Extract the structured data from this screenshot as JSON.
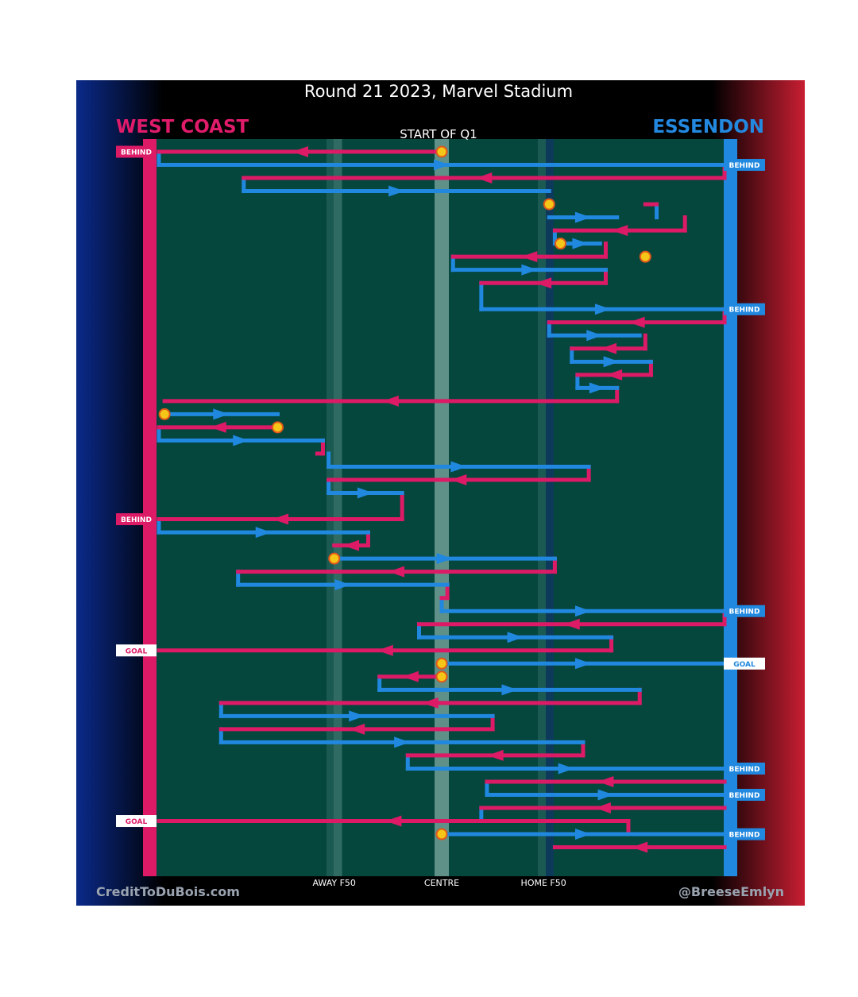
{
  "header": {
    "title": "Round 21 2023, Marvel Stadium",
    "subtitle": "START OF Q1"
  },
  "teams": {
    "away": {
      "name": "WEST COAST",
      "color": "#e01b6a"
    },
    "home": {
      "name": "ESSENDON",
      "color": "#2389e0"
    }
  },
  "credits": {
    "left": "CreditToDuBois.com",
    "right": "@BreeseEmlyn"
  },
  "colors": {
    "field": "#05463d",
    "away_line": "#dc1a66",
    "home_line": "#2088df",
    "marker": "#f5c518"
  },
  "chart_data": {
    "type": "line",
    "title": "Round 21 2023, Marvel Stadium",
    "subtitle": "START OF Q1",
    "description": "Ball movement chain chart; x = field position (0 = West Coast goal line, 100 = Essendon goal line), y = sequence of possession segments",
    "x_axis": {
      "range": [
        0,
        100
      ],
      "ticks": [
        {
          "label": "AWAY F50",
          "value": 31
        },
        {
          "label": "CENTRE",
          "value": 50
        },
        {
          "label": "HOME F50",
          "value": 68
        }
      ]
    },
    "outcomes": [
      {
        "team": "away",
        "label": "BEHIND",
        "row": 1
      },
      {
        "team": "home",
        "label": "BEHIND",
        "row": 2
      },
      {
        "team": "home",
        "label": "BEHIND",
        "row": 13
      },
      {
        "team": "away",
        "label": "BEHIND",
        "row": 29
      },
      {
        "team": "home",
        "label": "BEHIND",
        "row": 36
      },
      {
        "team": "away",
        "label": "GOAL",
        "row": 39
      },
      {
        "team": "home",
        "label": "GOAL",
        "row": 40
      },
      {
        "team": "home",
        "label": "BEHIND",
        "row": 48
      },
      {
        "team": "home",
        "label": "BEHIND",
        "row": 50
      },
      {
        "team": "away",
        "label": "GOAL",
        "row": 52
      },
      {
        "team": "home",
        "label": "BEHIND",
        "row": 53
      }
    ],
    "series": [
      {
        "name": "away",
        "segments": [
          {
            "row": 1,
            "from": 50,
            "to": 0
          },
          {
            "row": 3,
            "from": 100,
            "to": 15
          },
          {
            "row": 5,
            "from": 86,
            "to": 88
          },
          {
            "row": 7,
            "from": 93,
            "to": 70
          },
          {
            "row": 9,
            "from": 79,
            "to": 52
          },
          {
            "row": 11,
            "from": 79,
            "to": 57
          },
          {
            "row": 14,
            "from": 100,
            "to": 69
          },
          {
            "row": 16,
            "from": 86,
            "to": 73
          },
          {
            "row": 18,
            "from": 87,
            "to": 74
          },
          {
            "row": 20,
            "from": 81,
            "to": 1
          },
          {
            "row": 22,
            "from": 21,
            "to": 0
          },
          {
            "row": 24,
            "from": 29,
            "to": 28
          },
          {
            "row": 26,
            "from": 76,
            "to": 30
          },
          {
            "row": 29,
            "from": 43,
            "to": 0
          },
          {
            "row": 31,
            "from": 37,
            "to": 31
          },
          {
            "row": 33,
            "from": 70,
            "to": 14
          },
          {
            "row": 35,
            "from": 51,
            "to": 50
          },
          {
            "row": 37,
            "from": 100,
            "to": 46
          },
          {
            "row": 39,
            "from": 80,
            "to": 0
          },
          {
            "row": 41,
            "from": 50,
            "to": 39
          },
          {
            "row": 43,
            "from": 85,
            "to": 11
          },
          {
            "row": 45,
            "from": 59,
            "to": 11
          },
          {
            "row": 47,
            "from": 75,
            "to": 44
          },
          {
            "row": 49,
            "from": 100,
            "to": 58
          },
          {
            "row": 51,
            "from": 100,
            "to": 57
          },
          {
            "row": 52,
            "from": 83,
            "to": 0
          },
          {
            "row": 54,
            "from": 100,
            "to": 70
          }
        ]
      },
      {
        "name": "home",
        "segments": [
          {
            "row": 2,
            "from": 0,
            "to": 100
          },
          {
            "row": 4,
            "from": 15,
            "to": 69
          },
          {
            "row": 6,
            "from": 69,
            "to": 81
          },
          {
            "row": 8,
            "from": 71,
            "to": 78
          },
          {
            "row": 10,
            "from": 52,
            "to": 79
          },
          {
            "row": 13,
            "from": 57,
            "to": 100
          },
          {
            "row": 15,
            "from": 69,
            "to": 85
          },
          {
            "row": 17,
            "from": 73,
            "to": 87
          },
          {
            "row": 19,
            "from": 74,
            "to": 81
          },
          {
            "row": 21,
            "from": 1,
            "to": 21
          },
          {
            "row": 23,
            "from": 0,
            "to": 29
          },
          {
            "row": 25,
            "from": 30,
            "to": 76
          },
          {
            "row": 27,
            "from": 30,
            "to": 43
          },
          {
            "row": 30,
            "from": 0,
            "to": 37
          },
          {
            "row": 32,
            "from": 31,
            "to": 70
          },
          {
            "row": 34,
            "from": 14,
            "to": 51
          },
          {
            "row": 36,
            "from": 50,
            "to": 100
          },
          {
            "row": 38,
            "from": 46,
            "to": 80
          },
          {
            "row": 40,
            "from": 50,
            "to": 100
          },
          {
            "row": 42,
            "from": 39,
            "to": 85
          },
          {
            "row": 44,
            "from": 11,
            "to": 59
          },
          {
            "row": 46,
            "from": 11,
            "to": 75
          },
          {
            "row": 48,
            "from": 44,
            "to": 100
          },
          {
            "row": 50,
            "from": 58,
            "to": 100
          },
          {
            "row": 53,
            "from": 50,
            "to": 100
          }
        ]
      }
    ],
    "connectors": [
      {
        "rows": [
          1,
          2
        ],
        "x": 0,
        "color": "home"
      },
      {
        "rows": [
          2,
          3
        ],
        "x": 100,
        "color": "away"
      },
      {
        "rows": [
          3,
          4
        ],
        "x": 15,
        "color": "home"
      },
      {
        "rows": [
          5,
          6
        ],
        "x": 88,
        "color": "home"
      },
      {
        "rows": [
          6,
          7
        ],
        "x": 93,
        "color": "away"
      },
      {
        "rows": [
          7,
          8
        ],
        "x": 70,
        "color": "home"
      },
      {
        "rows": [
          8,
          9
        ],
        "x": 79,
        "color": "away"
      },
      {
        "rows": [
          9,
          10
        ],
        "x": 52,
        "color": "home"
      },
      {
        "rows": [
          10,
          11
        ],
        "x": 79,
        "color": "away"
      },
      {
        "rows": [
          11,
          13
        ],
        "x": 57,
        "color": "home"
      },
      {
        "rows": [
          13,
          14
        ],
        "x": 100,
        "color": "away"
      },
      {
        "rows": [
          14,
          15
        ],
        "x": 69,
        "color": "home"
      },
      {
        "rows": [
          15,
          16
        ],
        "x": 86,
        "color": "away"
      },
      {
        "rows": [
          16,
          17
        ],
        "x": 73,
        "color": "home"
      },
      {
        "rows": [
          17,
          18
        ],
        "x": 87,
        "color": "away"
      },
      {
        "rows": [
          18,
          19
        ],
        "x": 74,
        "color": "home"
      },
      {
        "rows": [
          19,
          20
        ],
        "x": 81,
        "color": "away"
      },
      {
        "rows": [
          22,
          23
        ],
        "x": 0,
        "color": "home"
      },
      {
        "rows": [
          23,
          24
        ],
        "x": 29,
        "color": "away"
      },
      {
        "rows": [
          24,
          25
        ],
        "x": 30,
        "color": "home"
      },
      {
        "rows": [
          25,
          26
        ],
        "x": 76,
        "color": "away"
      },
      {
        "rows": [
          26,
          27
        ],
        "x": 30,
        "color": "home"
      },
      {
        "rows": [
          27,
          29
        ],
        "x": 43,
        "color": "away"
      },
      {
        "rows": [
          29,
          30
        ],
        "x": 0,
        "color": "home"
      },
      {
        "rows": [
          30,
          31
        ],
        "x": 37,
        "color": "away"
      },
      {
        "rows": [
          32,
          33
        ],
        "x": 70,
        "color": "away"
      },
      {
        "rows": [
          33,
          34
        ],
        "x": 14,
        "color": "home"
      },
      {
        "rows": [
          34,
          35
        ],
        "x": 51,
        "color": "away"
      },
      {
        "rows": [
          35,
          36
        ],
        "x": 50,
        "color": "home"
      },
      {
        "rows": [
          36,
          37
        ],
        "x": 100,
        "color": "away"
      },
      {
        "rows": [
          37,
          38
        ],
        "x": 46,
        "color": "home"
      },
      {
        "rows": [
          38,
          39
        ],
        "x": 80,
        "color": "away"
      },
      {
        "rows": [
          41,
          42
        ],
        "x": 39,
        "color": "home"
      },
      {
        "rows": [
          42,
          43
        ],
        "x": 85,
        "color": "away"
      },
      {
        "rows": [
          43,
          44
        ],
        "x": 11,
        "color": "home"
      },
      {
        "rows": [
          44,
          45
        ],
        "x": 59,
        "color": "away"
      },
      {
        "rows": [
          45,
          46
        ],
        "x": 11,
        "color": "home"
      },
      {
        "rows": [
          46,
          47
        ],
        "x": 75,
        "color": "away"
      },
      {
        "rows": [
          47,
          48
        ],
        "x": 44,
        "color": "home"
      },
      {
        "rows": [
          49,
          50
        ],
        "x": 58,
        "color": "home"
      },
      {
        "rows": [
          51,
          52
        ],
        "x": 57,
        "color": "home"
      },
      {
        "rows": [
          52,
          53
        ],
        "x": 83,
        "color": "away"
      }
    ],
    "ball_ups": [
      {
        "row": 1,
        "x": 50
      },
      {
        "row": 5,
        "x": 69
      },
      {
        "row": 8,
        "x": 71
      },
      {
        "row": 9,
        "x": 86
      },
      {
        "row": 21,
        "x": 1
      },
      {
        "row": 22,
        "x": 21
      },
      {
        "row": 32,
        "x": 31
      },
      {
        "row": 40,
        "x": 50
      },
      {
        "row": 41,
        "x": 50
      },
      {
        "row": 53,
        "x": 50
      }
    ]
  }
}
